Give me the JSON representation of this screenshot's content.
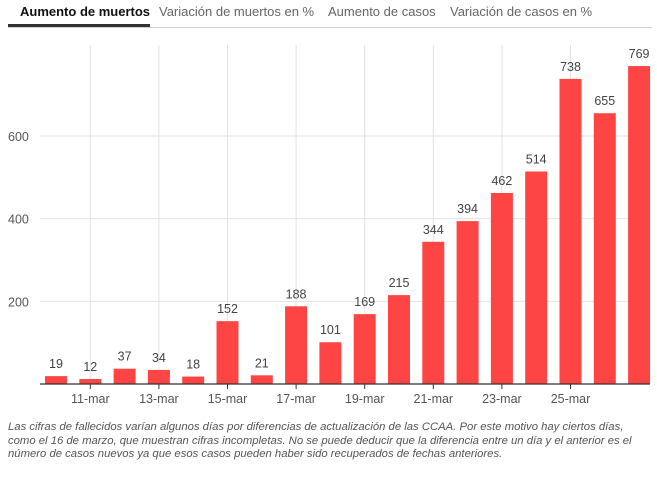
{
  "tabs": [
    {
      "label": "Aumento de muertos",
      "active": true
    },
    {
      "label": "Variación de muertos en %",
      "active": false
    },
    {
      "label": "Aumento de casos",
      "active": false
    },
    {
      "label": "Variación de casos en %",
      "active": false
    }
  ],
  "chart_data": {
    "type": "bar",
    "title": "Aumento de muertos",
    "categories": [
      "10-mar",
      "11-mar",
      "12-mar",
      "13-mar",
      "14-mar",
      "15-mar",
      "16-mar",
      "17-mar",
      "18-mar",
      "19-mar",
      "20-mar",
      "21-mar",
      "22-mar",
      "23-mar",
      "24-mar",
      "25-mar",
      "26-mar",
      "27-mar"
    ],
    "values": [
      19,
      12,
      37,
      34,
      18,
      152,
      21,
      188,
      101,
      169,
      215,
      344,
      394,
      462,
      514,
      738,
      655,
      769
    ],
    "x_tick_labels": [
      "11-mar",
      "13-mar",
      "15-mar",
      "17-mar",
      "19-mar",
      "21-mar",
      "23-mar",
      "25-mar"
    ],
    "y_ticks": [
      200,
      400,
      600
    ],
    "ylim": [
      0,
      820
    ],
    "xlabel": "",
    "ylabel": "",
    "grid": true,
    "bar_color": "#ff4444"
  },
  "note": "Las cifras de fallecidos varían algunos días por diferencias de actualización de las CCAA. Por este motivo hay ciertos días, como el 16 de marzo, que muestran cifras incompletas. No se puede deducir que la diferencia entre un día y el anterior es el número de casos nuevos ya que esos casos pueden haber sido recuperados de fechas anteriores."
}
